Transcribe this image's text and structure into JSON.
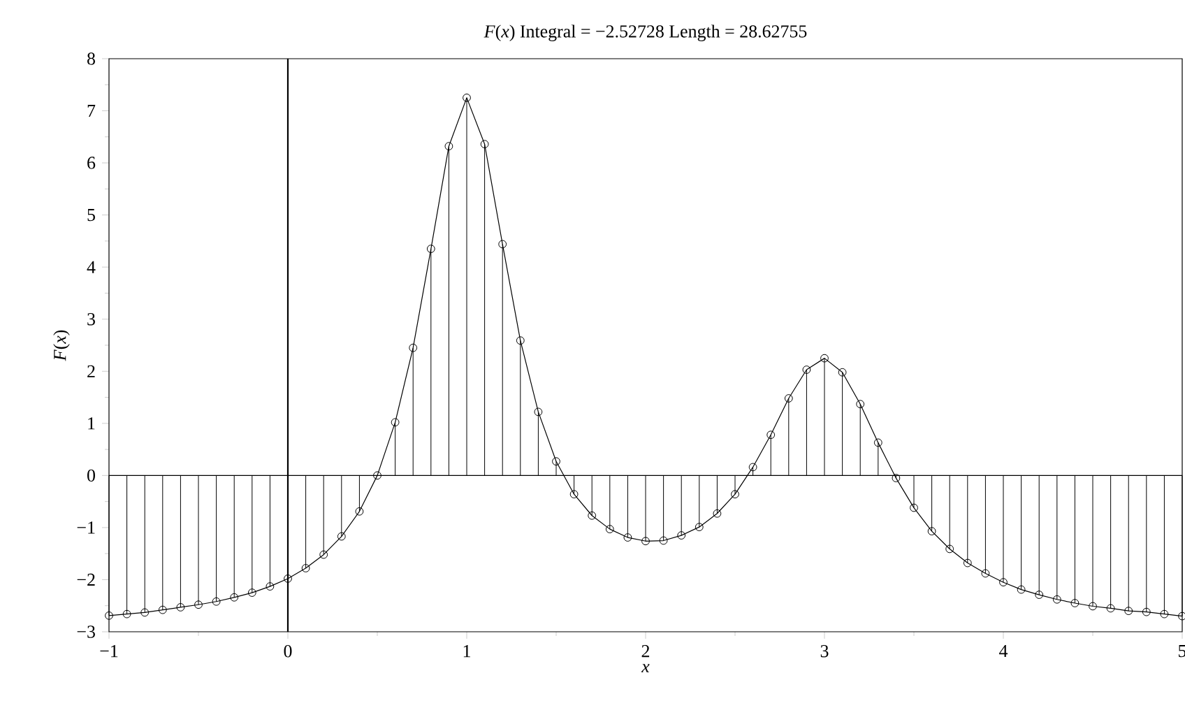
{
  "chart_data": {
    "type": "line",
    "title": "*F*(*x*)    Integral = −2.52728    Length = 28.62755",
    "xlabel": "x",
    "ylabel": "*F*(*x*)",
    "x": [
      -1,
      -0.9,
      -0.8,
      -0.7,
      -0.6,
      -0.5,
      -0.4,
      -0.3,
      -0.2,
      -0.1,
      0,
      0.1,
      0.2,
      0.3,
      0.4,
      0.5,
      0.6,
      0.7,
      0.8,
      0.9,
      1,
      1.1,
      1.2,
      1.3,
      1.4,
      1.5,
      1.6,
      1.7,
      1.8,
      1.9,
      2,
      2.1,
      2.2,
      2.3,
      2.4,
      2.5,
      2.6,
      2.7,
      2.8,
      2.9,
      3,
      3.1,
      3.2,
      3.3,
      3.4,
      3.5,
      3.6,
      3.7,
      3.8,
      3.9,
      4,
      4.1,
      4.2,
      4.3,
      4.4,
      4.5,
      4.6,
      4.7,
      4.8,
      4.9,
      5
    ],
    "series": [
      {
        "color": "#000000",
        "values": [
          -2.69,
          -2.66,
          -2.63,
          -2.58,
          -2.53,
          -2.48,
          -2.42,
          -2.34,
          -2.25,
          -2.13,
          -1.98,
          -1.78,
          -1.52,
          -1.17,
          -0.69,
          0,
          1.02,
          2.45,
          4.35,
          6.32,
          7.25,
          6.36,
          4.44,
          2.59,
          1.22,
          0.27,
          -0.36,
          -0.77,
          -1.03,
          -1.19,
          -1.26,
          -1.25,
          -1.15,
          -0.99,
          -0.73,
          -0.36,
          0.16,
          0.78,
          1.48,
          2.03,
          2.25,
          1.98,
          1.37,
          0.63,
          -0.05,
          -0.62,
          -1.07,
          -1.41,
          -1.68,
          -1.88,
          -2.05,
          -2.19,
          -2.29,
          -2.38,
          -2.45,
          -2.51,
          -2.55,
          -2.6,
          -2.62,
          -2.66,
          -2.7
        ]
      },
      {
        "type": "lollipop",
        "color": "#000000",
        "marker": "circle",
        "values": [
          -2.69,
          -2.66,
          -2.63,
          -2.58,
          -2.53,
          -2.48,
          -2.42,
          -2.34,
          -2.25,
          -2.13,
          -1.98,
          -1.78,
          -1.52,
          -1.17,
          -0.69,
          0,
          1.02,
          2.45,
          4.35,
          6.32,
          7.25,
          6.36,
          4.44,
          2.59,
          1.22,
          0.27,
          -0.36,
          -0.77,
          -1.03,
          -1.19,
          -1.26,
          -1.25,
          -1.15,
          -0.99,
          -0.73,
          -0.36,
          0.16,
          0.78,
          1.48,
          2.03,
          2.25,
          1.98,
          1.37,
          0.63,
          -0.05,
          -0.62,
          -1.07,
          -1.41,
          -1.68,
          -1.88,
          -2.05,
          -2.19,
          -2.29,
          -2.38,
          -2.45,
          -2.51,
          -2.55,
          -2.6,
          -2.62,
          -2.66,
          -2.7
        ]
      }
    ],
    "xlim": [
      -1,
      5
    ],
    "ylim": [
      -3,
      8
    ],
    "xticks": [
      {
        "value": -1,
        "label": "−1"
      },
      0,
      1,
      2,
      3,
      4,
      5
    ],
    "yticks": [
      {
        "value": -3,
        "label": "−3"
      },
      {
        "value": -2,
        "label": "−2"
      },
      {
        "value": -1,
        "label": "−1"
      },
      0,
      1,
      2,
      3,
      4,
      5,
      6,
      7,
      8
    ],
    "ref_lines": [
      {
        "axis": "x",
        "value": 0,
        "color": "#000000"
      }
    ]
  }
}
